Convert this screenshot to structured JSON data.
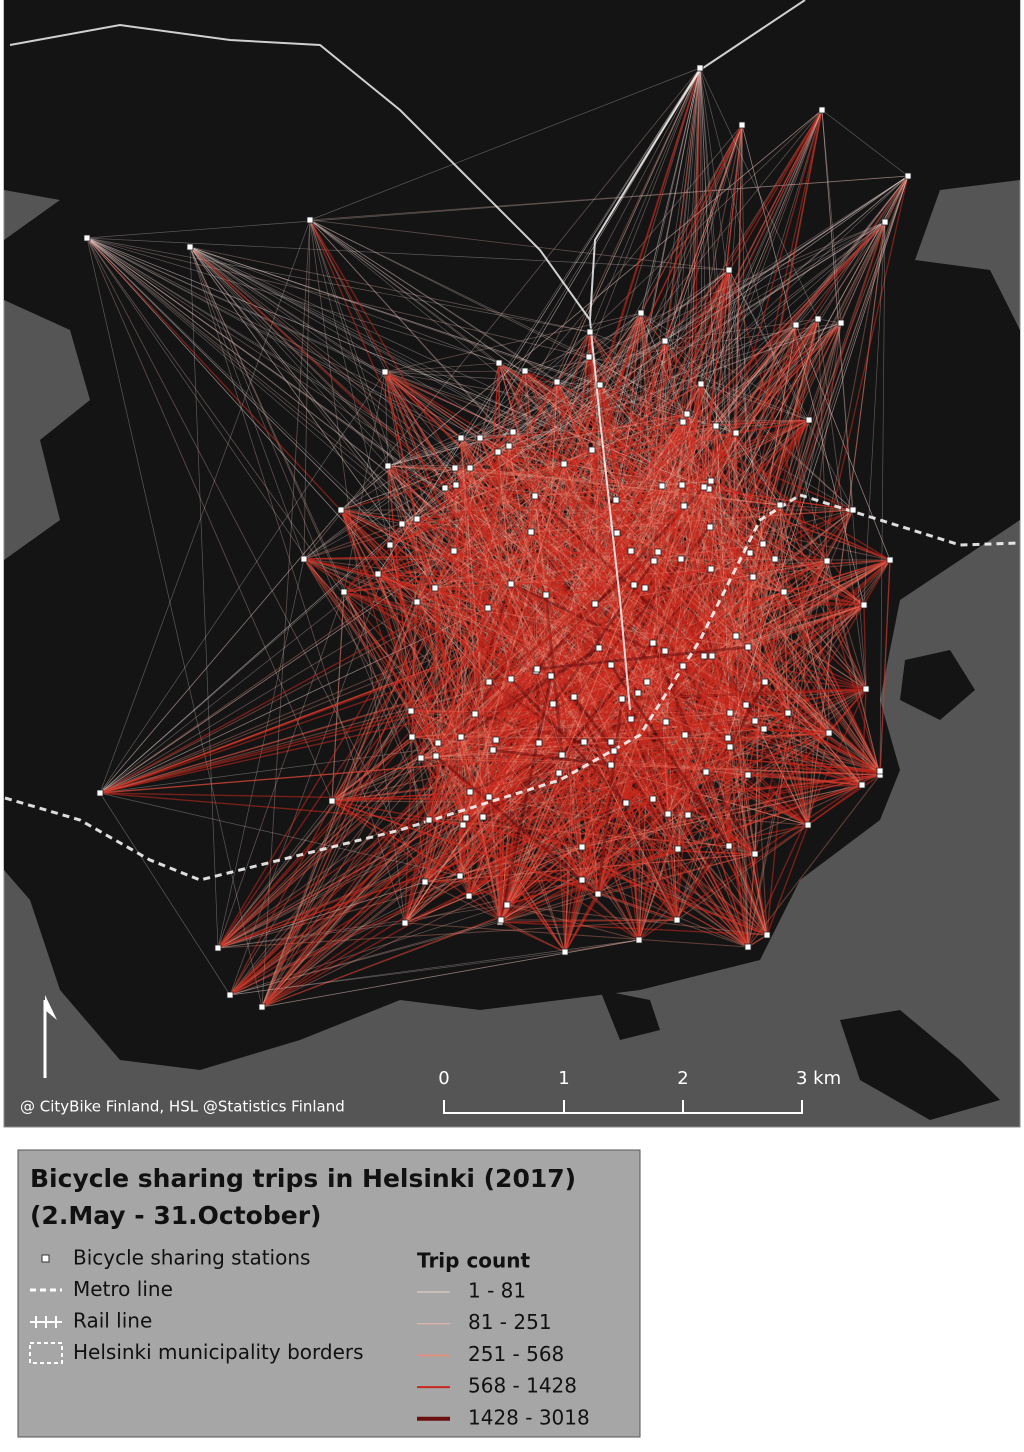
{
  "map": {
    "attribution": "@ CityBike Finland, HSL @Statistics Finland",
    "scale_bar": [
      "0",
      "1",
      "2",
      "3 km"
    ]
  },
  "legend": {
    "title_line1": "Bicycle sharing trips in Helsinki (2017)",
    "title_line2": "(2.May - 31.October)",
    "items": [
      "Bicycle sharing stations",
      "Metro line",
      "Rail line",
      "Helsinki municipality borders"
    ],
    "trip_count": {
      "title": "Trip count",
      "classes": [
        "1 - 81",
        "81 - 251",
        "251 - 568",
        "568 - 1428",
        "1428 - 3018"
      ]
    }
  }
}
